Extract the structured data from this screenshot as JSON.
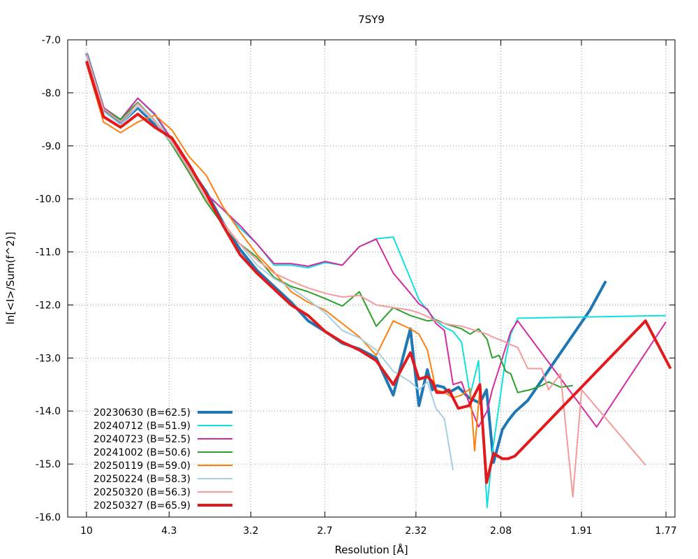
{
  "chart_data": {
    "type": "line",
    "title": "7SY9",
    "xlabel": "Resolution [Å]",
    "ylabel": "ln[<I>/Sum(f^2)]",
    "x_ticks": [
      "10",
      "4.3",
      "3.2",
      "2.7",
      "2.32",
      "2.08",
      "1.91",
      "1.77"
    ],
    "x_tick_inv_d2": [
      0.01,
      0.0541,
      0.0977,
      0.1372,
      0.1858,
      0.2311,
      0.2741,
      0.3192
    ],
    "xlim_inv_d2": [
      0.0,
      0.324
    ],
    "y_ticks": [
      "-7.0",
      "-8.0",
      "-9.0",
      "-10.0",
      "-11.0",
      "-12.0",
      "-13.0",
      "-14.0",
      "-15.0",
      "-16.0"
    ],
    "ylim": [
      -16.0,
      -7.0
    ],
    "grid": true,
    "legend_position": "bottom-left",
    "series": [
      {
        "name": "20230630 (B=62.5)",
        "color": "#1f77b4",
        "width": 4,
        "x": [
          0.01,
          0.0191,
          0.0282,
          0.0374,
          0.0465,
          0.0556,
          0.0647,
          0.0738,
          0.0829,
          0.0919,
          0.101,
          0.1101,
          0.1192,
          0.1283,
          0.1374,
          0.1465,
          0.1556,
          0.1646,
          0.1737,
          0.1828,
          0.1874,
          0.1919,
          0.1946,
          0.1969,
          0.2005,
          0.2034,
          0.2084,
          0.2141,
          0.2199,
          0.2235,
          0.2272,
          0.2319,
          0.235,
          0.2386,
          0.2455,
          0.2786,
          0.2871
        ],
        "y": [
          -7.25,
          -8.3,
          -8.58,
          -8.28,
          -8.6,
          -8.88,
          -9.4,
          -9.86,
          -10.45,
          -10.95,
          -11.35,
          -11.65,
          -11.95,
          -12.3,
          -12.5,
          -12.72,
          -12.83,
          -13.0,
          -13.7,
          -12.45,
          -13.9,
          -13.22,
          -13.6,
          -13.52,
          -13.55,
          -13.65,
          -13.55,
          -13.75,
          -13.85,
          -13.6,
          -14.97,
          -14.35,
          -14.18,
          -14.02,
          -13.8,
          -12.1,
          -11.55
        ]
      },
      {
        "name": "20240712 (B=51.9)",
        "color": "#10e0e0",
        "width": 2,
        "x": [
          0.01,
          0.0191,
          0.0282,
          0.0374,
          0.0465,
          0.0556,
          0.0647,
          0.0738,
          0.0829,
          0.0919,
          0.101,
          0.1101,
          0.1192,
          0.1283,
          0.1374,
          0.1465,
          0.1556,
          0.1646,
          0.1737,
          0.1828,
          0.1874,
          0.1919,
          0.1965,
          0.201,
          0.2056,
          0.2101,
          0.2147,
          0.2192,
          0.2238,
          0.2265,
          0.2301,
          0.2337,
          0.2364,
          0.2401,
          0.3192
        ],
        "y": [
          -7.3,
          -8.3,
          -8.52,
          -8.1,
          -8.42,
          -8.92,
          -9.42,
          -9.9,
          -10.2,
          -10.55,
          -10.85,
          -11.25,
          -11.25,
          -11.3,
          -11.2,
          -11.25,
          -10.9,
          -10.75,
          -10.72,
          -11.5,
          -11.9,
          -12.1,
          -12.3,
          -12.42,
          -12.5,
          -12.7,
          -13.7,
          -13.05,
          -15.82,
          -14.8,
          -13.9,
          -13.0,
          -12.55,
          -12.25,
          -12.2
        ]
      },
      {
        "name": "20240723 (B=52.5)",
        "color": "#d62a9e",
        "width": 2,
        "x": [
          0.01,
          0.0191,
          0.0282,
          0.0374,
          0.0465,
          0.0556,
          0.0647,
          0.0738,
          0.0829,
          0.0919,
          0.101,
          0.1101,
          0.1192,
          0.1283,
          0.1374,
          0.1465,
          0.1556,
          0.1646,
          0.1737,
          0.1828,
          0.1874,
          0.1919,
          0.1965,
          0.201,
          0.2056,
          0.2101,
          0.2147,
          0.2192,
          0.2238,
          0.2265,
          0.2301,
          0.2337,
          0.2364,
          0.2401,
          0.2822,
          0.3192
        ],
        "y": [
          -7.3,
          -8.28,
          -8.5,
          -8.1,
          -8.4,
          -8.88,
          -9.4,
          -9.9,
          -10.2,
          -10.5,
          -10.85,
          -11.22,
          -11.22,
          -11.27,
          -11.18,
          -11.25,
          -10.9,
          -10.76,
          -11.4,
          -11.78,
          -11.98,
          -12.08,
          -12.35,
          -12.48,
          -13.5,
          -13.45,
          -13.9,
          -14.3,
          -14.0,
          -13.6,
          -13.2,
          -12.8,
          -12.5,
          -12.3,
          -14.3,
          -12.32
        ]
      },
      {
        "name": "20241002 (B=50.6)",
        "color": "#2ca02c",
        "width": 2,
        "x": [
          0.01,
          0.0191,
          0.0282,
          0.0374,
          0.0465,
          0.0556,
          0.0647,
          0.0738,
          0.0829,
          0.0919,
          0.101,
          0.1101,
          0.1192,
          0.1283,
          0.1374,
          0.1465,
          0.1556,
          0.1646,
          0.1737,
          0.1828,
          0.1874,
          0.1919,
          0.1965,
          0.201,
          0.2056,
          0.2101,
          0.2147,
          0.2192,
          0.2238,
          0.2265,
          0.2301,
          0.2337,
          0.2364,
          0.2401,
          0.2465,
          0.2529,
          0.2565,
          0.2629,
          0.2695
        ],
        "y": [
          -7.3,
          -8.3,
          -8.5,
          -8.18,
          -8.52,
          -8.98,
          -9.5,
          -10.05,
          -10.5,
          -10.85,
          -11.1,
          -11.48,
          -11.65,
          -11.75,
          -11.88,
          -12.02,
          -11.75,
          -12.4,
          -12.05,
          -12.2,
          -12.25,
          -12.3,
          -12.28,
          -12.35,
          -12.4,
          -12.45,
          -12.55,
          -12.45,
          -12.65,
          -13.0,
          -12.95,
          -13.25,
          -13.3,
          -13.65,
          -13.6,
          -13.52,
          -13.45,
          -13.55,
          -13.52
        ]
      },
      {
        "name": "20250119 (B=59.0)",
        "color": "#ff7f0e",
        "width": 2,
        "x": [
          0.01,
          0.0191,
          0.0282,
          0.0374,
          0.0465,
          0.0556,
          0.0647,
          0.0738,
          0.0829,
          0.0919,
          0.101,
          0.1101,
          0.1192,
          0.1283,
          0.1374,
          0.1465,
          0.1556,
          0.1646,
          0.1737,
          0.1828,
          0.1874,
          0.1919,
          0.1965,
          0.201,
          0.2056,
          0.2101,
          0.2147,
          0.2171,
          0.2198
        ],
        "y": [
          -7.45,
          -8.55,
          -8.75,
          -8.55,
          -8.42,
          -8.7,
          -9.2,
          -9.55,
          -10.15,
          -10.62,
          -11.05,
          -11.38,
          -11.75,
          -11.95,
          -12.1,
          -12.35,
          -12.6,
          -12.95,
          -12.3,
          -12.45,
          -12.55,
          -12.85,
          -13.6,
          -13.65,
          -13.75,
          -13.7,
          -13.58,
          -14.75,
          -13.6
        ]
      },
      {
        "name": "20250224 (B=58.3)",
        "color": "#a6cee3",
        "width": 2,
        "x": [
          0.01,
          0.0191,
          0.0282,
          0.0374,
          0.0465,
          0.0556,
          0.0647,
          0.0738,
          0.0829,
          0.0919,
          0.101,
          0.1101,
          0.1192,
          0.1283,
          0.1374,
          0.1465,
          0.1556,
          0.1646,
          0.1737,
          0.1828,
          0.1874,
          0.1919,
          0.1965,
          0.201,
          0.2056
        ],
        "y": [
          -7.3,
          -8.35,
          -8.6,
          -8.25,
          -8.55,
          -8.95,
          -9.42,
          -9.9,
          -10.48,
          -10.85,
          -11.25,
          -11.5,
          -11.68,
          -11.9,
          -12.15,
          -12.48,
          -12.62,
          -12.85,
          -13.25,
          -13.45,
          -13.6,
          -13.45,
          -13.95,
          -14.15,
          -15.12
        ]
      },
      {
        "name": "20250320 (B=56.3)",
        "color": "#f59a9a",
        "width": 2,
        "x": [
          0.01,
          0.0191,
          0.0282,
          0.0374,
          0.0465,
          0.0556,
          0.0647,
          0.0738,
          0.0829,
          0.0919,
          0.101,
          0.1101,
          0.1192,
          0.1283,
          0.1374,
          0.1465,
          0.1556,
          0.1646,
          0.1737,
          0.1828,
          0.1874,
          0.1919,
          0.1965,
          0.201,
          0.2056,
          0.2101,
          0.2147,
          0.2192,
          0.2238,
          0.2265,
          0.2301,
          0.2337,
          0.2364,
          0.2401,
          0.2455,
          0.2529,
          0.2565,
          0.2629,
          0.2695,
          0.2742,
          0.3083
        ],
        "y": [
          -7.25,
          -8.3,
          -8.55,
          -8.2,
          -8.52,
          -8.92,
          -9.45,
          -10.0,
          -10.45,
          -10.85,
          -11.15,
          -11.4,
          -11.55,
          -11.68,
          -11.78,
          -11.85,
          -11.82,
          -12.0,
          -12.05,
          -12.1,
          -12.15,
          -12.22,
          -12.3,
          -12.35,
          -12.38,
          -12.4,
          -12.45,
          -12.5,
          -12.55,
          -12.6,
          -12.65,
          -12.7,
          -12.75,
          -12.8,
          -13.2,
          -13.2,
          -13.6,
          -13.3,
          -15.62,
          -13.6,
          -15.02
        ]
      },
      {
        "name": "20250327 (B=65.9)",
        "color": "#e31a1c",
        "width": 4,
        "x": [
          0.01,
          0.0191,
          0.0282,
          0.0374,
          0.0465,
          0.0556,
          0.0647,
          0.0738,
          0.0829,
          0.0919,
          0.101,
          0.1101,
          0.1192,
          0.1283,
          0.1374,
          0.1465,
          0.1556,
          0.1646,
          0.1737,
          0.1828,
          0.1874,
          0.1919,
          0.1946,
          0.1969,
          0.2005,
          0.2034,
          0.2084,
          0.2141,
          0.2199,
          0.2235,
          0.2272,
          0.2319,
          0.235,
          0.2386,
          0.3083,
          0.3216
        ],
        "y": [
          -7.4,
          -8.45,
          -8.65,
          -8.4,
          -8.65,
          -8.85,
          -9.35,
          -9.9,
          -10.5,
          -11.05,
          -11.4,
          -11.7,
          -12.0,
          -12.2,
          -12.5,
          -12.7,
          -12.85,
          -13.05,
          -13.5,
          -12.9,
          -13.4,
          -13.35,
          -13.45,
          -13.65,
          -13.65,
          -13.6,
          -13.95,
          -13.9,
          -13.5,
          -15.35,
          -14.8,
          -14.9,
          -14.9,
          -14.85,
          -12.3,
          -13.2
        ]
      }
    ]
  }
}
